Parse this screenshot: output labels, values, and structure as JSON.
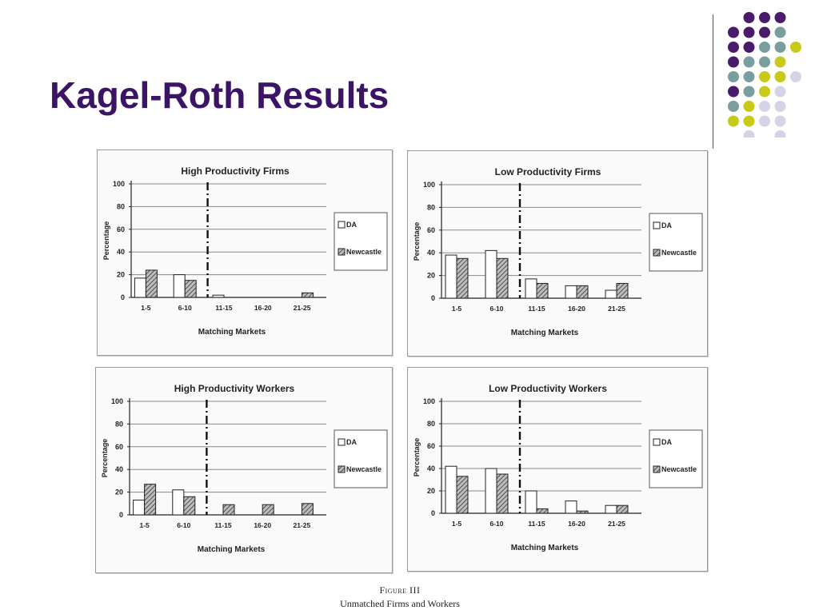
{
  "slide": {
    "title": "Kagel-Roth Results",
    "figure_label": "Figure III",
    "figure_caption": "Unmatched Firms and Workers"
  },
  "colors": {
    "title": "#3b1466",
    "dot_purple": "#4a1a6b",
    "dot_teal": "#7a9e9f",
    "dot_yellow": "#c9c91a",
    "dot_lavender": "#d4d4e6",
    "da_fill": "#ffffff",
    "newcastle_fill": "#8a8a8a"
  },
  "chart_data": [
    {
      "type": "bar",
      "title": "High Productivity Firms",
      "xlabel": "Matching Markets",
      "ylabel": "Percentage",
      "ylim": [
        0,
        100
      ],
      "yticks": [
        "0",
        "20",
        "40",
        "60",
        "80",
        "100"
      ],
      "categories": [
        "1-5",
        "6-10",
        "11-15",
        "16-20",
        "21-25"
      ],
      "divider_after": "6-10",
      "legend": [
        "DA",
        "Newcastle"
      ],
      "series": [
        {
          "name": "DA",
          "values": [
            17,
            20,
            2,
            0,
            0
          ]
        },
        {
          "name": "Newcastle",
          "values": [
            24,
            15,
            0,
            0,
            4
          ]
        }
      ]
    },
    {
      "type": "bar",
      "title": "Low Productivity Firms",
      "xlabel": "Matching Markets",
      "ylabel": "Percentage",
      "ylim": [
        0,
        100
      ],
      "yticks": [
        "0",
        "20",
        "40",
        "60",
        "80",
        "100"
      ],
      "categories": [
        "1-5",
        "6-10",
        "11-15",
        "16-20",
        "21-25"
      ],
      "divider_after": "6-10",
      "legend": [
        "DA",
        "Newcastle"
      ],
      "series": [
        {
          "name": "DA",
          "values": [
            38,
            42,
            17,
            11,
            7
          ]
        },
        {
          "name": "Newcastle",
          "values": [
            35,
            35,
            13,
            11,
            13
          ]
        }
      ]
    },
    {
      "type": "bar",
      "title": "High Productivity Workers",
      "xlabel": "Matching Markets",
      "ylabel": "Percentage",
      "ylim": [
        0,
        100
      ],
      "yticks": [
        "0",
        "20",
        "40",
        "60",
        "80",
        "100"
      ],
      "categories": [
        "1-5",
        "6-10",
        "11-15",
        "16-20",
        "21-25"
      ],
      "divider_after": "6-10",
      "legend": [
        "DA",
        "Newcastle"
      ],
      "series": [
        {
          "name": "DA",
          "values": [
            13,
            22,
            0,
            0,
            0
          ]
        },
        {
          "name": "Newcastle",
          "values": [
            27,
            16,
            9,
            9,
            10
          ]
        }
      ]
    },
    {
      "type": "bar",
      "title": "Low Productivity Workers",
      "xlabel": "Matching Markets",
      "ylabel": "Percentage",
      "ylim": [
        0,
        100
      ],
      "yticks": [
        "0",
        "20",
        "40",
        "60",
        "80",
        "100"
      ],
      "categories": [
        "1-5",
        "6-10",
        "11-15",
        "16-20",
        "21-25"
      ],
      "divider_after": "6-10",
      "legend": [
        "DA",
        "Newcastle"
      ],
      "series": [
        {
          "name": "DA",
          "values": [
            42,
            40,
            20,
            11,
            7
          ]
        },
        {
          "name": "Newcastle",
          "values": [
            33,
            35,
            4,
            2,
            7
          ]
        }
      ]
    }
  ]
}
